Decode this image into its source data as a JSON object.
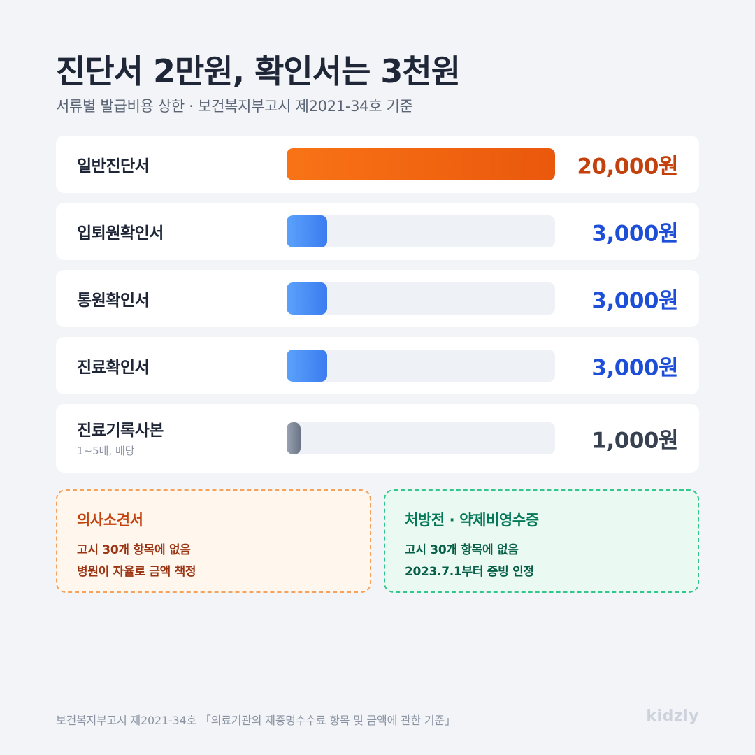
{
  "title": "진단서 2만원, 확인서는 3천원",
  "subtitle": "서류별 발급비용 상한 · 보건복지부고시 제2021-34호 기준",
  "chart_data": {
    "type": "bar",
    "orientation": "horizontal",
    "categories": [
      "일반진단서",
      "입퇴원확인서",
      "통원확인서",
      "진료확인서",
      "진료기록사본"
    ],
    "values": [
      20000,
      3000,
      3000,
      3000,
      1000
    ],
    "value_labels": [
      "20,000원",
      "3,000원",
      "3,000원",
      "3,000원",
      "1,000원"
    ],
    "notes": [
      "",
      "",
      "",
      "",
      "1~5매, 매당"
    ],
    "colors": [
      "orange",
      "blue",
      "blue",
      "blue",
      "gray"
    ],
    "xlim": [
      0,
      20000
    ]
  },
  "notes": {
    "left": {
      "title": "의사소견서",
      "line1": "고시 30개 항목에 없음",
      "line2": "병원이 자율로 금액 책정"
    },
    "right": {
      "title": "처방전 · 약제비영수증",
      "line1": "고시 30개 항목에 없음",
      "line2": "2023.7.1부터 증빙 인정"
    }
  },
  "footer": {
    "source": "보건복지부고시 제2021-34호 「의료기관의 제증명수수료 항목 및 금액에 관한 기준」",
    "logo": "kidzly"
  },
  "palette": {
    "orange": "#ea580c",
    "blue": "#3b7cf0",
    "gray": "#6b7486",
    "background": "#f2f4f7"
  }
}
